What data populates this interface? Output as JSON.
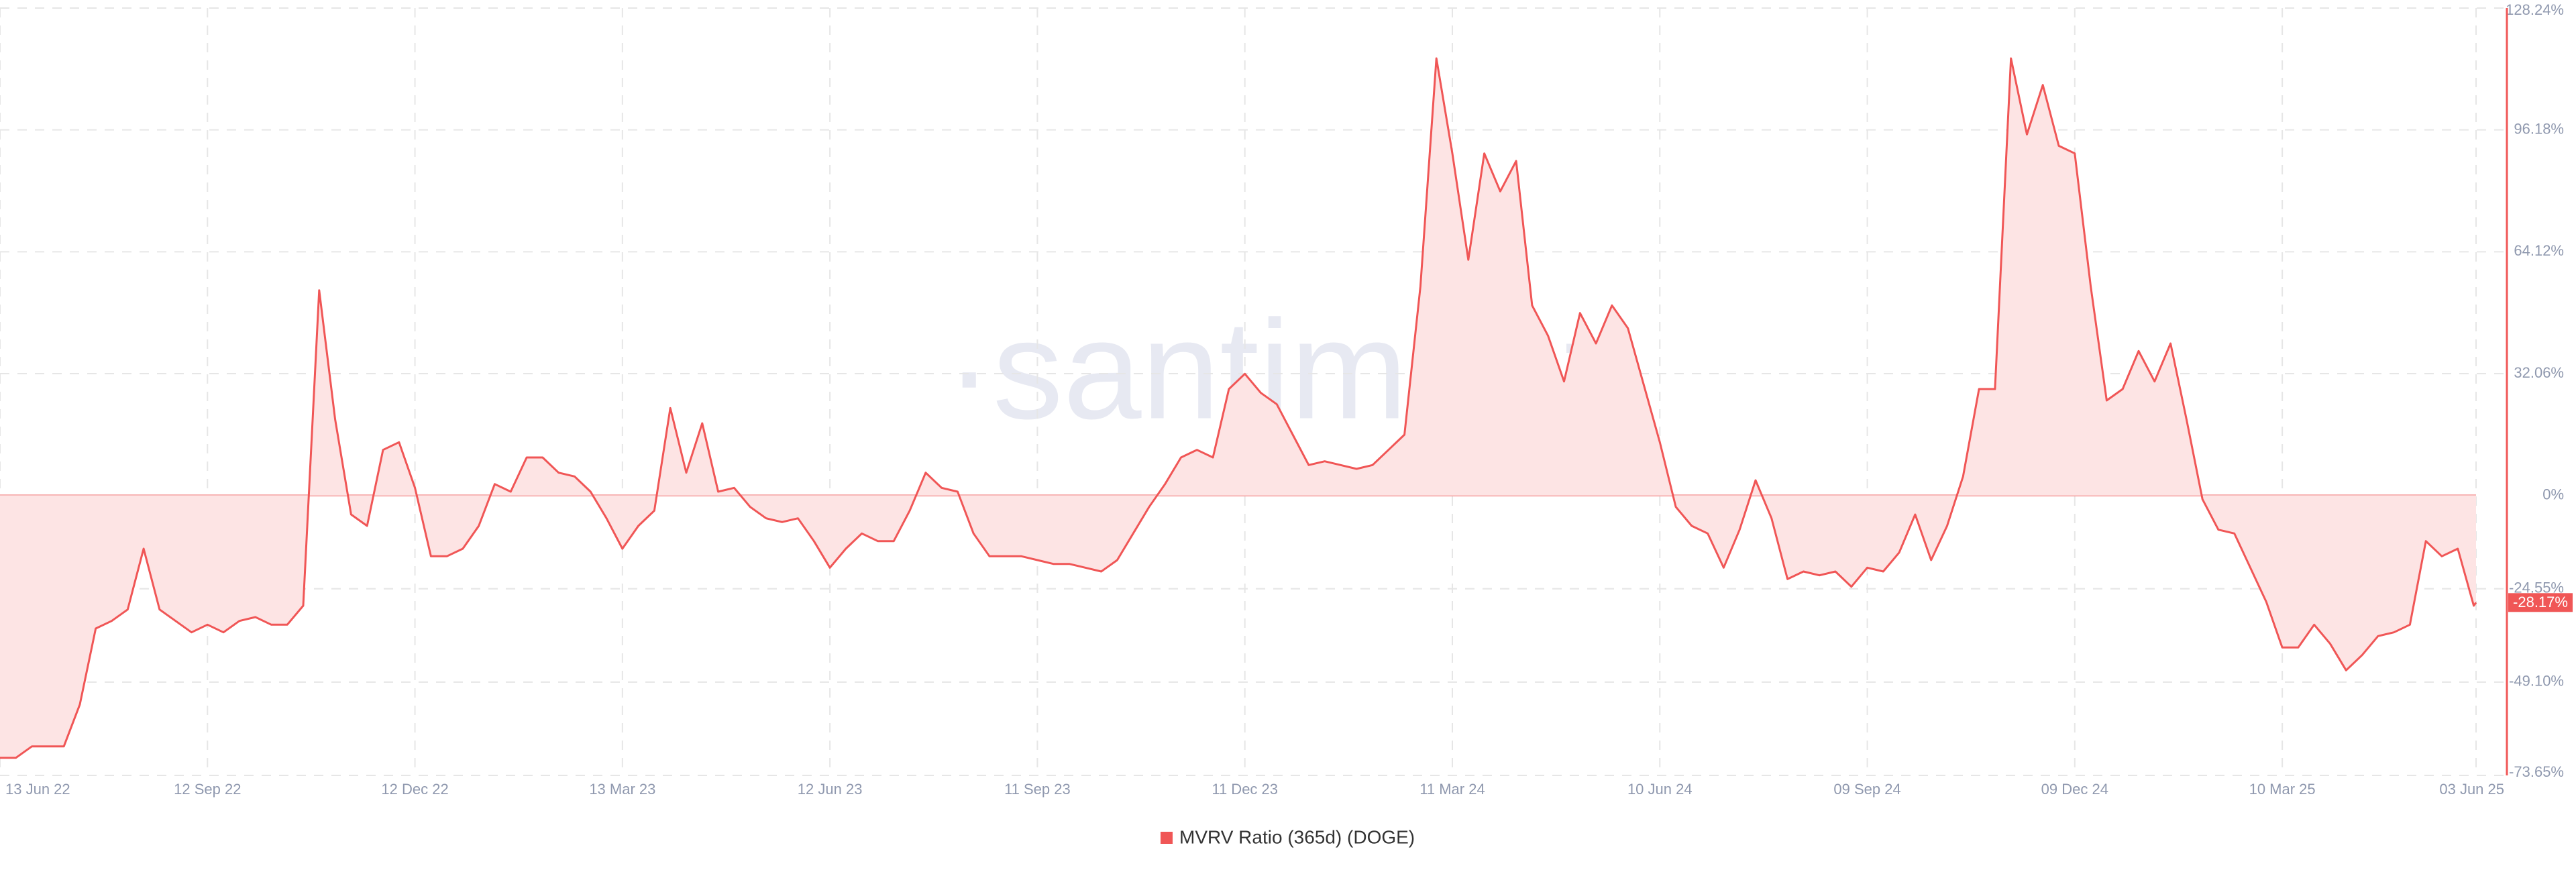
{
  "chart_data": {
    "type": "area",
    "watermark": "·santiment·",
    "x": [
      "2022-06-13",
      "2022-06-20",
      "2022-06-27",
      "2022-07-04",
      "2022-07-11",
      "2022-07-18",
      "2022-07-25",
      "2022-08-01",
      "2022-08-08",
      "2022-08-15",
      "2022-08-22",
      "2022-08-29",
      "2022-09-05",
      "2022-09-12",
      "2022-09-19",
      "2022-09-26",
      "2022-10-03",
      "2022-10-10",
      "2022-10-17",
      "2022-10-24",
      "2022-10-31",
      "2022-11-07",
      "2022-11-14",
      "2022-11-21",
      "2022-11-28",
      "2022-12-05",
      "2022-12-12",
      "2022-12-19",
      "2022-12-26",
      "2023-01-02",
      "2023-01-09",
      "2023-01-16",
      "2023-01-23",
      "2023-01-30",
      "2023-02-06",
      "2023-02-13",
      "2023-02-20",
      "2023-02-27",
      "2023-03-06",
      "2023-03-13",
      "2023-03-20",
      "2023-03-27",
      "2023-04-03",
      "2023-04-10",
      "2023-04-17",
      "2023-04-24",
      "2023-05-01",
      "2023-05-08",
      "2023-05-15",
      "2023-05-22",
      "2023-05-29",
      "2023-06-05",
      "2023-06-12",
      "2023-06-19",
      "2023-06-26",
      "2023-07-03",
      "2023-07-10",
      "2023-07-17",
      "2023-07-24",
      "2023-07-31",
      "2023-08-07",
      "2023-08-14",
      "2023-08-21",
      "2023-08-28",
      "2023-09-04",
      "2023-09-11",
      "2023-09-18",
      "2023-09-25",
      "2023-10-02",
      "2023-10-09",
      "2023-10-16",
      "2023-10-23",
      "2023-10-30",
      "2023-11-06",
      "2023-11-13",
      "2023-11-20",
      "2023-11-27",
      "2023-12-04",
      "2023-12-11",
      "2023-12-18",
      "2023-12-25",
      "2024-01-01",
      "2024-01-08",
      "2024-01-15",
      "2024-01-22",
      "2024-01-29",
      "2024-02-05",
      "2024-02-12",
      "2024-02-19",
      "2024-02-26",
      "2024-03-04",
      "2024-03-11",
      "2024-03-18",
      "2024-03-25",
      "2024-04-01",
      "2024-04-08",
      "2024-04-15",
      "2024-04-22",
      "2024-04-29",
      "2024-05-06",
      "2024-05-13",
      "2024-05-20",
      "2024-05-27",
      "2024-06-03",
      "2024-06-10",
      "2024-06-17",
      "2024-06-24",
      "2024-07-01",
      "2024-07-08",
      "2024-07-15",
      "2024-07-22",
      "2024-07-29",
      "2024-08-05",
      "2024-08-12",
      "2024-08-19",
      "2024-08-26",
      "2024-09-02",
      "2024-09-09",
      "2024-09-16",
      "2024-09-23",
      "2024-09-30",
      "2024-10-07",
      "2024-10-14",
      "2024-10-21",
      "2024-10-28",
      "2024-11-04",
      "2024-11-11",
      "2024-11-18",
      "2024-11-25",
      "2024-12-02",
      "2024-12-09",
      "2024-12-16",
      "2024-12-23",
      "2024-12-30",
      "2025-01-06",
      "2025-01-13",
      "2025-01-20",
      "2025-01-27",
      "2025-02-03",
      "2025-02-10",
      "2025-02-17",
      "2025-02-24",
      "2025-03-03",
      "2025-03-10",
      "2025-03-17",
      "2025-03-24",
      "2025-03-31",
      "2025-04-07",
      "2025-04-14",
      "2025-04-21",
      "2025-04-28",
      "2025-05-05",
      "2025-05-12",
      "2025-05-19",
      "2025-05-26",
      "2025-06-02",
      "2025-06-03"
    ],
    "series": [
      {
        "name": "MVRV Ratio (365d) (DOGE)",
        "color": "#f05656",
        "fill": "#fde4e4",
        "values": [
          -69,
          -69,
          -66,
          -66,
          -66,
          -55,
          -35,
          -33,
          -30,
          -14,
          -30,
          -33,
          -36,
          -34,
          -36,
          -33,
          -32,
          -34,
          -34,
          -29,
          54,
          20,
          -5,
          -8,
          12,
          14,
          2,
          -16,
          -16,
          -14,
          -8,
          3,
          1,
          10,
          10,
          6,
          5,
          1,
          -6,
          -14,
          -8,
          -4,
          23,
          6,
          19,
          1,
          2,
          -3,
          -6,
          -7,
          -6,
          -12,
          -19,
          -14,
          -10,
          -12,
          -12,
          -4,
          6,
          2,
          1,
          -10,
          -16,
          -16,
          -16,
          -17,
          -18,
          -18,
          -19,
          -20,
          -17,
          -10,
          -3,
          3,
          10,
          12,
          10,
          28,
          32,
          27,
          24,
          16,
          8,
          9,
          8,
          7,
          8,
          12,
          16,
          55,
          115,
          90,
          62,
          90,
          80,
          88,
          50,
          42,
          30,
          48,
          40,
          50,
          44,
          29,
          14,
          -3,
          -8,
          -10,
          -19,
          -9,
          4,
          -6,
          -22,
          -20,
          -21,
          -20,
          -24,
          -19,
          -20,
          -15,
          -5,
          -17,
          -8,
          5,
          28,
          28,
          115,
          95,
          108,
          92,
          90,
          55,
          25,
          28,
          38,
          30,
          40,
          20,
          -1,
          -9,
          -10,
          -19,
          -28,
          -40,
          -40,
          -34,
          -39,
          -46,
          -42,
          -37,
          -36,
          -34,
          -12,
          -16,
          -14,
          -29,
          -28.17
        ]
      }
    ],
    "xlim": [
      "2022-06-13",
      "2025-06-03"
    ],
    "xticks": [
      {
        "value": "2022-06-13",
        "label": "13 Jun 22"
      },
      {
        "value": "2022-09-12",
        "label": "12 Sep 22"
      },
      {
        "value": "2022-12-12",
        "label": "12 Dec 22"
      },
      {
        "value": "2023-03-13",
        "label": "13 Mar 23"
      },
      {
        "value": "2023-06-12",
        "label": "12 Jun 23"
      },
      {
        "value": "2023-09-11",
        "label": "11 Sep 23"
      },
      {
        "value": "2023-12-11",
        "label": "11 Dec 23"
      },
      {
        "value": "2024-03-11",
        "label": "11 Mar 24"
      },
      {
        "value": "2024-06-10",
        "label": "10 Jun 24"
      },
      {
        "value": "2024-09-09",
        "label": "09 Sep 24"
      },
      {
        "value": "2024-12-09",
        "label": "09 Dec 24"
      },
      {
        "value": "2025-03-10",
        "label": "10 Mar 25"
      },
      {
        "value": "2025-06-03",
        "label": "03 Jun 25"
      }
    ],
    "ylim": [
      -73.65,
      128.24
    ],
    "yticks": [
      {
        "value": 128.24,
        "label": "128.24%"
      },
      {
        "value": 96.18,
        "label": "96.18%"
      },
      {
        "value": 64.12,
        "label": "64.12%"
      },
      {
        "value": 32.06,
        "label": "32.06%"
      },
      {
        "value": 0,
        "label": "0%"
      },
      {
        "value": -24.55,
        "label": "-24.55%"
      },
      {
        "value": -49.1,
        "label": "-49.10%"
      },
      {
        "value": -73.65,
        "label": "-73.65%"
      }
    ],
    "last_value_label": {
      "value": -28.17,
      "label": "-28.17%"
    },
    "grid": true
  }
}
